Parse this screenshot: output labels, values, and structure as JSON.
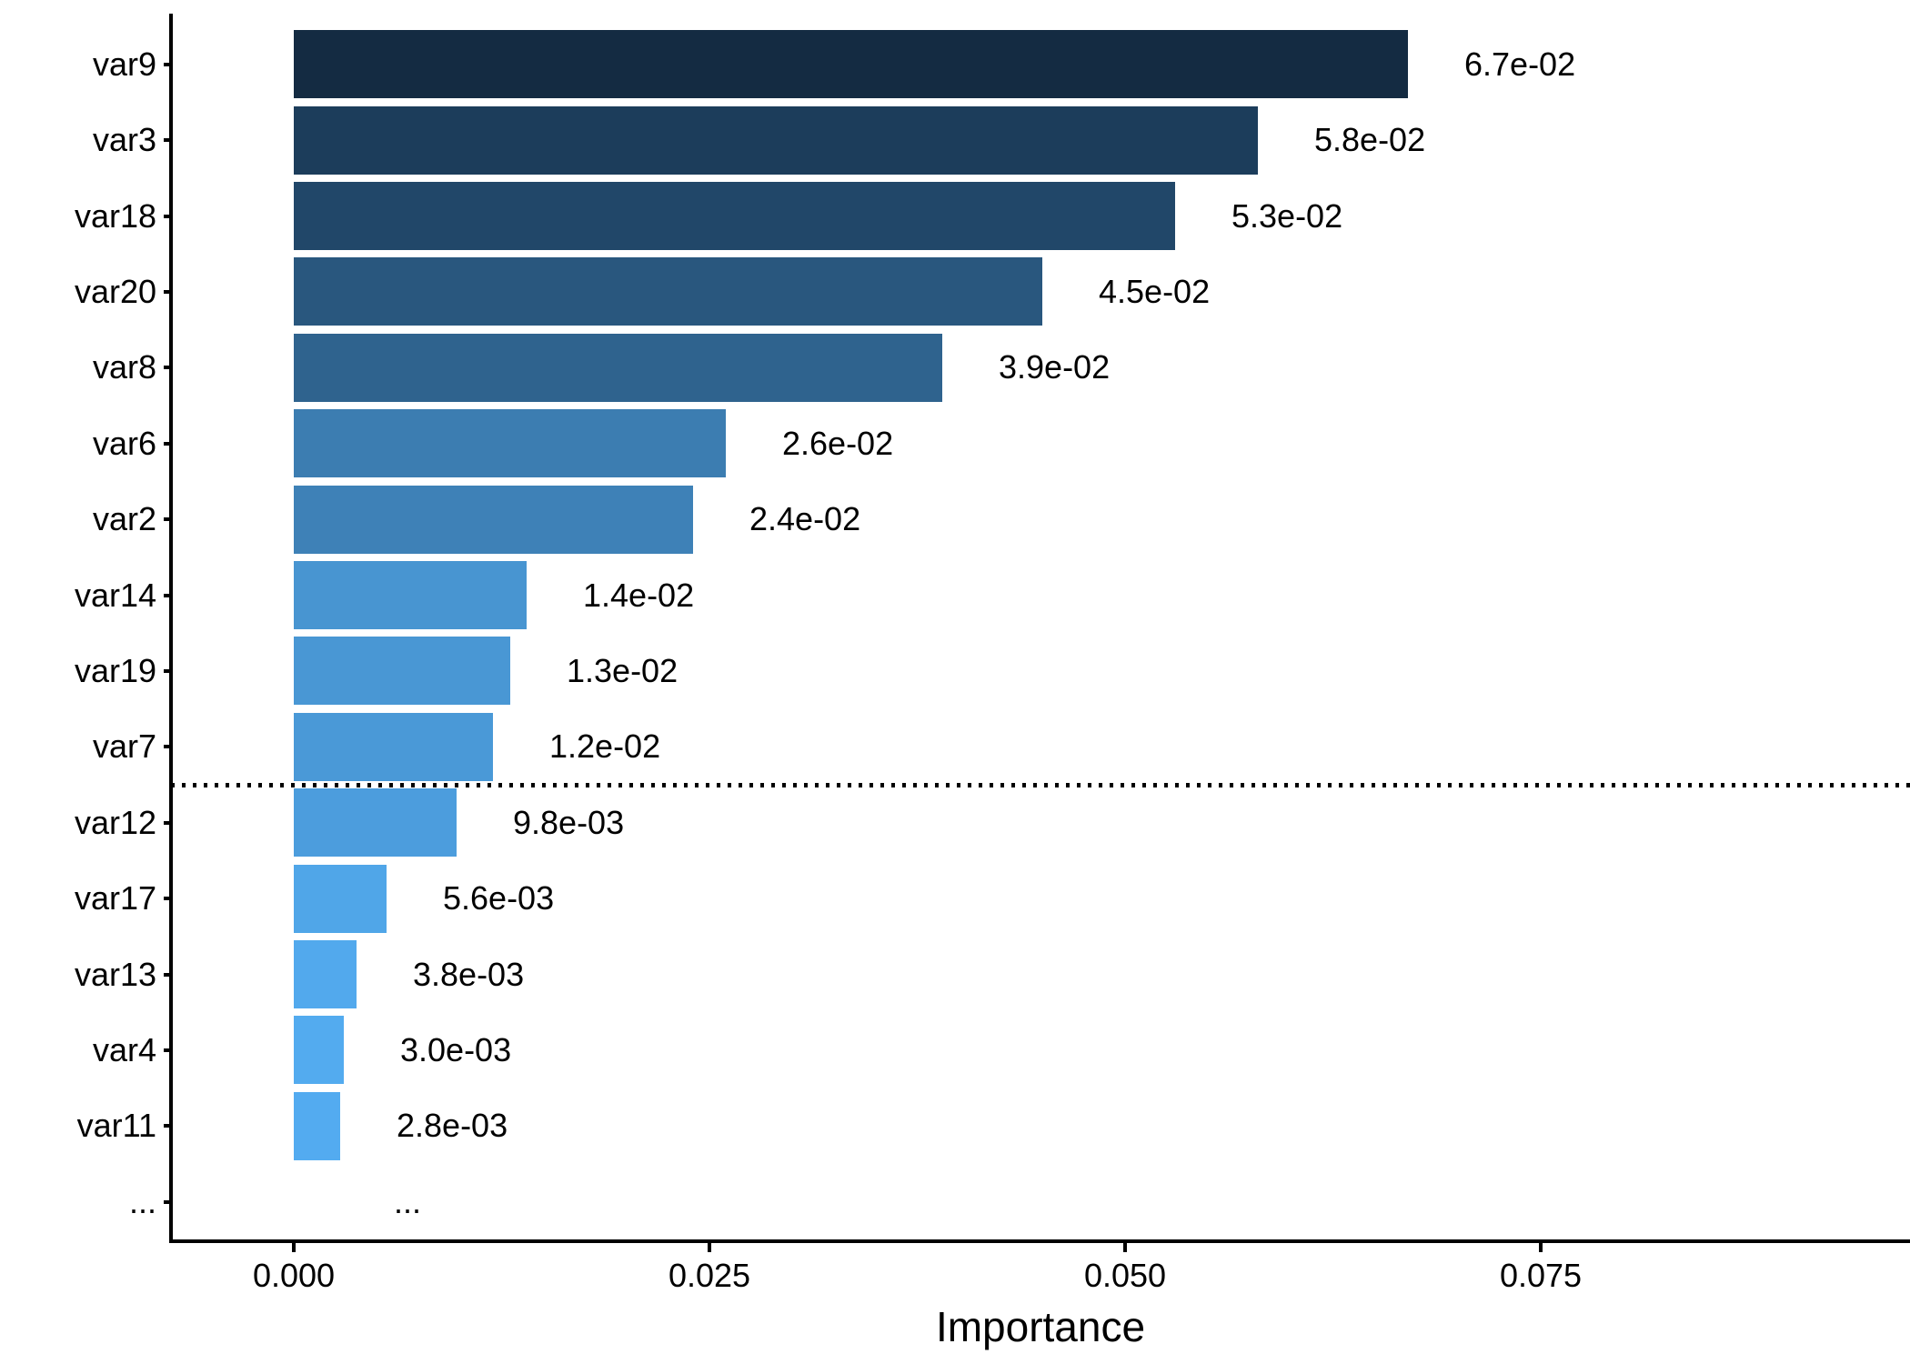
{
  "chart_data": {
    "type": "bar",
    "orientation": "horizontal",
    "title": "",
    "xlabel": "Importance",
    "ylabel": "",
    "categories": [
      "var9",
      "var3",
      "var18",
      "var20",
      "var8",
      "var6",
      "var2",
      "var14",
      "var19",
      "var7",
      "var12",
      "var17",
      "var13",
      "var4",
      "var11",
      "..."
    ],
    "values": [
      0.067,
      0.058,
      0.053,
      0.045,
      0.039,
      0.026,
      0.024,
      0.014,
      0.013,
      0.012,
      0.0098,
      0.0056,
      0.0038,
      0.003,
      0.0028,
      null
    ],
    "bar_labels": [
      "6.7e-02",
      "5.8e-02",
      "5.3e-02",
      "4.5e-02",
      "3.9e-02",
      "2.6e-02",
      "2.4e-02",
      "1.4e-02",
      "1.3e-02",
      "1.2e-02",
      "9.8e-03",
      "5.6e-03",
      "3.8e-03",
      "3.0e-03",
      "2.8e-03",
      "..."
    ],
    "bar_colors": [
      "#142B42",
      "#1C3D5B",
      "#214769",
      "#29577E",
      "#2F638E",
      "#3C7DB1",
      "#3E81B7",
      "#4895D1",
      "#4997D4",
      "#4A99D7",
      "#4C9DDD",
      "#50A6E8",
      "#52A9ED",
      "#53ABEF",
      "#53ABF0",
      null
    ],
    "x_ticks": [
      {
        "value": 0.0,
        "label": "0.000"
      },
      {
        "value": 0.025,
        "label": "0.025"
      },
      {
        "value": 0.05,
        "label": "0.050"
      },
      {
        "value": 0.075,
        "label": "0.075"
      }
    ],
    "xlim": [
      -0.0074,
      0.0972
    ],
    "grid": false,
    "legend": false,
    "threshold_line": {
      "between": [
        "var7",
        "var12"
      ],
      "style": "dotted",
      "color": "#000000"
    },
    "axis_color": "#000000",
    "text_color": "#000000"
  }
}
